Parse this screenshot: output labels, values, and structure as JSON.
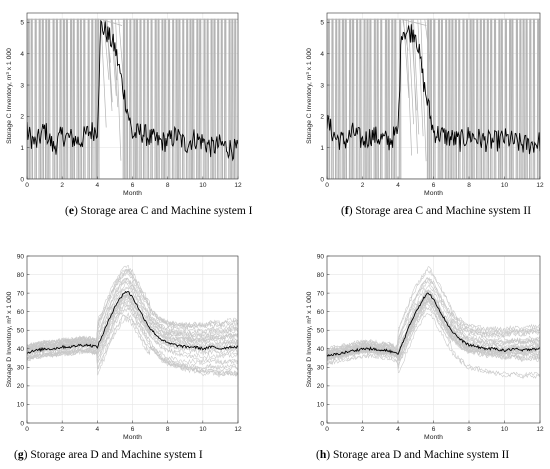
{
  "chart_data": [
    {
      "type": "line",
      "panel_letter": "e",
      "caption": "Storage area C and Machine system I",
      "xlabel": "Month",
      "ylabel": "Storage C Inventory, m³ x 1 000",
      "xlim": [
        0,
        12
      ],
      "ylim": [
        0,
        5.3
      ],
      "xticks": [
        0,
        2,
        4,
        6,
        8,
        10,
        12
      ],
      "yticks": [
        0,
        1,
        2,
        3,
        4,
        5
      ],
      "grid": true,
      "series": [
        {
          "role": "mean",
          "color": "#000000",
          "x": [
            0,
            0.5,
            1,
            1.5,
            2,
            2.5,
            3,
            3.5,
            4,
            4.2,
            4.5,
            5,
            5.5,
            6,
            6.5,
            7,
            7.5,
            8,
            8.5,
            9,
            9.5,
            10,
            10.5,
            11,
            11.5,
            12
          ],
          "y": [
            1.5,
            1.1,
            1.6,
            1.0,
            1.4,
            1.3,
            1.2,
            1.5,
            1.6,
            4.9,
            4.7,
            4.2,
            2.8,
            1.4,
            1.5,
            1.3,
            1.2,
            1.2,
            1.4,
            1.1,
            1.3,
            1.2,
            1.0,
            1.1,
            1.0,
            0.9
          ]
        },
        {
          "role": "runs",
          "color": "#b4b4b4",
          "low": 0,
          "high": 5.1,
          "gap": [
            4.2,
            5.4
          ],
          "count": 60
        }
      ]
    },
    {
      "type": "line",
      "panel_letter": "f",
      "caption": "Storage area C and Machine system II",
      "xlabel": "Month",
      "ylabel": "Storage C Inventory, m³ x 1 000",
      "xlim": [
        0,
        12
      ],
      "ylim": [
        0,
        5.3
      ],
      "xticks": [
        0,
        2,
        4,
        6,
        8,
        10,
        12
      ],
      "yticks": [
        0,
        1,
        2,
        3,
        4,
        5
      ],
      "grid": true,
      "series": [
        {
          "role": "mean",
          "color": "#000000",
          "x": [
            0,
            0.5,
            1,
            1.5,
            2,
            2.5,
            3,
            3.5,
            4,
            4.2,
            4.5,
            5,
            5.5,
            6,
            6.5,
            7,
            7.5,
            8,
            8.5,
            9,
            9.5,
            10,
            10.5,
            11,
            11.5,
            12
          ],
          "y": [
            1.8,
            1.3,
            1.2,
            1.5,
            1.2,
            1.4,
            1.3,
            1.2,
            1.5,
            4.8,
            4.7,
            4.7,
            2.9,
            1.5,
            1.4,
            1.3,
            1.2,
            1.4,
            1.3,
            1.2,
            1.2,
            1.3,
            1.2,
            1.1,
            1.1,
            1.2
          ]
        },
        {
          "role": "runs",
          "color": "#b4b4b4",
          "low": 0,
          "high": 5.1,
          "gap": [
            4.2,
            5.6
          ],
          "count": 60
        }
      ]
    },
    {
      "type": "line",
      "panel_letter": "g",
      "caption": "Storage area D and Machine system I",
      "xlabel": "Month",
      "ylabel": "Storage D Inventory, m³ x 1 000",
      "xlim": [
        0,
        12
      ],
      "ylim": [
        0,
        90
      ],
      "xticks": [
        0,
        2,
        4,
        6,
        8,
        10,
        12
      ],
      "yticks": [
        0,
        10,
        20,
        30,
        40,
        50,
        60,
        70,
        80,
        90
      ],
      "grid": true,
      "series": [
        {
          "role": "mean",
          "color": "#000000",
          "x": [
            0,
            0.5,
            1,
            1.5,
            2,
            2.5,
            3,
            3.5,
            4,
            4.5,
            5,
            5.5,
            5.7,
            6,
            6.5,
            7,
            7.5,
            8,
            8.5,
            9,
            9.5,
            10,
            10.5,
            11,
            11.5,
            12
          ],
          "y": [
            38,
            39,
            40,
            40,
            41,
            41,
            42,
            42,
            41,
            52,
            63,
            70,
            71,
            68,
            59,
            51,
            46,
            43,
            42,
            41,
            41,
            40,
            41,
            40,
            41,
            41
          ]
        },
        {
          "role": "runs",
          "color": "#c8c8c8",
          "spread": 22,
          "count": 30
        }
      ]
    },
    {
      "type": "line",
      "panel_letter": "h",
      "caption": "Storage area D and Machine system II",
      "xlabel": "Month",
      "ylabel": "Storage D Inventory, m³ x 1 000",
      "xlim": [
        0,
        12
      ],
      "ylim": [
        0,
        90
      ],
      "xticks": [
        0,
        2,
        4,
        6,
        8,
        10,
        12
      ],
      "yticks": [
        0,
        10,
        20,
        30,
        40,
        50,
        60,
        70,
        80,
        90
      ],
      "grid": true,
      "series": [
        {
          "role": "mean",
          "color": "#000000",
          "x": [
            0,
            0.5,
            1,
            1.5,
            2,
            2.5,
            3,
            3.5,
            4,
            4.5,
            5,
            5.5,
            5.7,
            6,
            6.5,
            7,
            7.5,
            8,
            8.5,
            9,
            9.5,
            10,
            10.5,
            11,
            11.5,
            12
          ],
          "y": [
            36,
            37,
            38,
            39,
            40,
            40,
            39,
            39,
            37,
            49,
            60,
            68,
            70,
            67,
            58,
            50,
            45,
            42,
            41,
            40,
            40,
            39,
            40,
            39,
            40,
            40
          ]
        },
        {
          "role": "runs",
          "color": "#c8c8c8",
          "spread": 22,
          "count": 30
        }
      ]
    }
  ]
}
